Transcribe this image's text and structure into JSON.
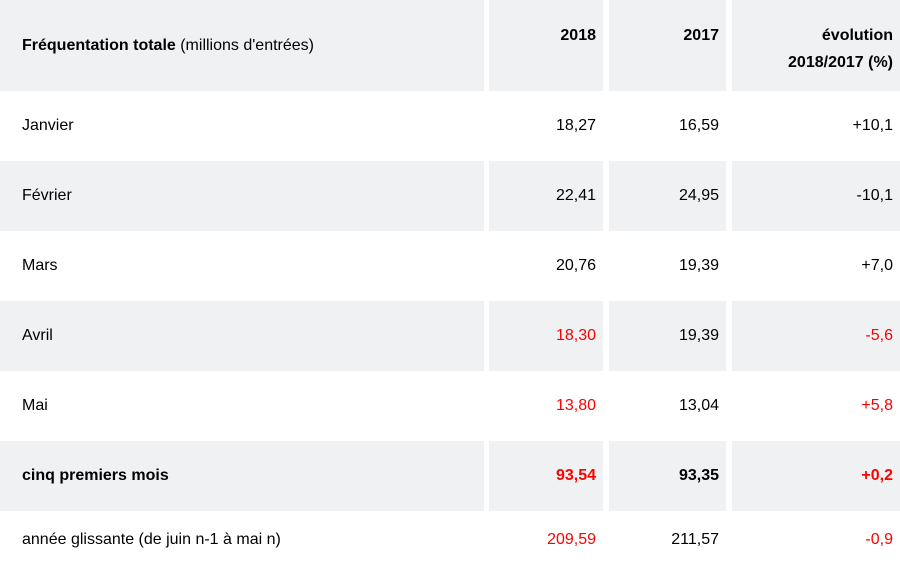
{
  "colors": {
    "red": "#ff0000",
    "row_stripe": "#f0f1f2",
    "text": "#000000"
  },
  "table": {
    "header": {
      "label_bold": "Fréquentation totale",
      "label_normal": " (millions d'entrées)",
      "col_2018": "2018",
      "col_2017": "2017",
      "evolution_line1": "évolution",
      "evolution_line2": "2018/2017 (%)"
    },
    "rows": [
      {
        "label": "Janvier",
        "v2018": "18,27",
        "v2017": "16,59",
        "evolution": "+10,1"
      },
      {
        "label": "Février",
        "v2018": "22,41",
        "v2017": "24,95",
        "evolution": "-10,1"
      },
      {
        "label": "Mars",
        "v2018": "20,76",
        "v2017": "19,39",
        "evolution": "+7,0"
      },
      {
        "label": "Avril",
        "v2018": "18,30",
        "v2017": "19,39",
        "evolution": "-5,6"
      },
      {
        "label": "Mai",
        "v2018": "13,80",
        "v2017": "13,04",
        "evolution": "+5,8"
      },
      {
        "label": "cinq premiers mois",
        "v2018": "93,54",
        "v2017": "93,35",
        "evolution": "+0,2"
      },
      {
        "label": "année glissante (de juin n-1 à mai n)",
        "v2018": "209,59",
        "v2017": "211,57",
        "evolution": "-0,9"
      }
    ]
  },
  "chart_data": {
    "type": "table",
    "title": "Fréquentation totale (millions d'entrées)",
    "columns": [
      "",
      "2018",
      "2017",
      "évolution 2018/2017 (%)"
    ],
    "rows": [
      [
        "Janvier",
        18.27,
        16.59,
        10.1
      ],
      [
        "Février",
        22.41,
        24.95,
        -10.1
      ],
      [
        "Mars",
        20.76,
        19.39,
        7.0
      ],
      [
        "Avril",
        18.3,
        19.39,
        -5.6
      ],
      [
        "Mai",
        13.8,
        13.04,
        5.8
      ],
      [
        "cinq premiers mois",
        93.54,
        93.35,
        0.2
      ],
      [
        "année glissante (de juin n-1 à mai n)",
        209.59,
        211.57,
        -0.9
      ]
    ]
  }
}
